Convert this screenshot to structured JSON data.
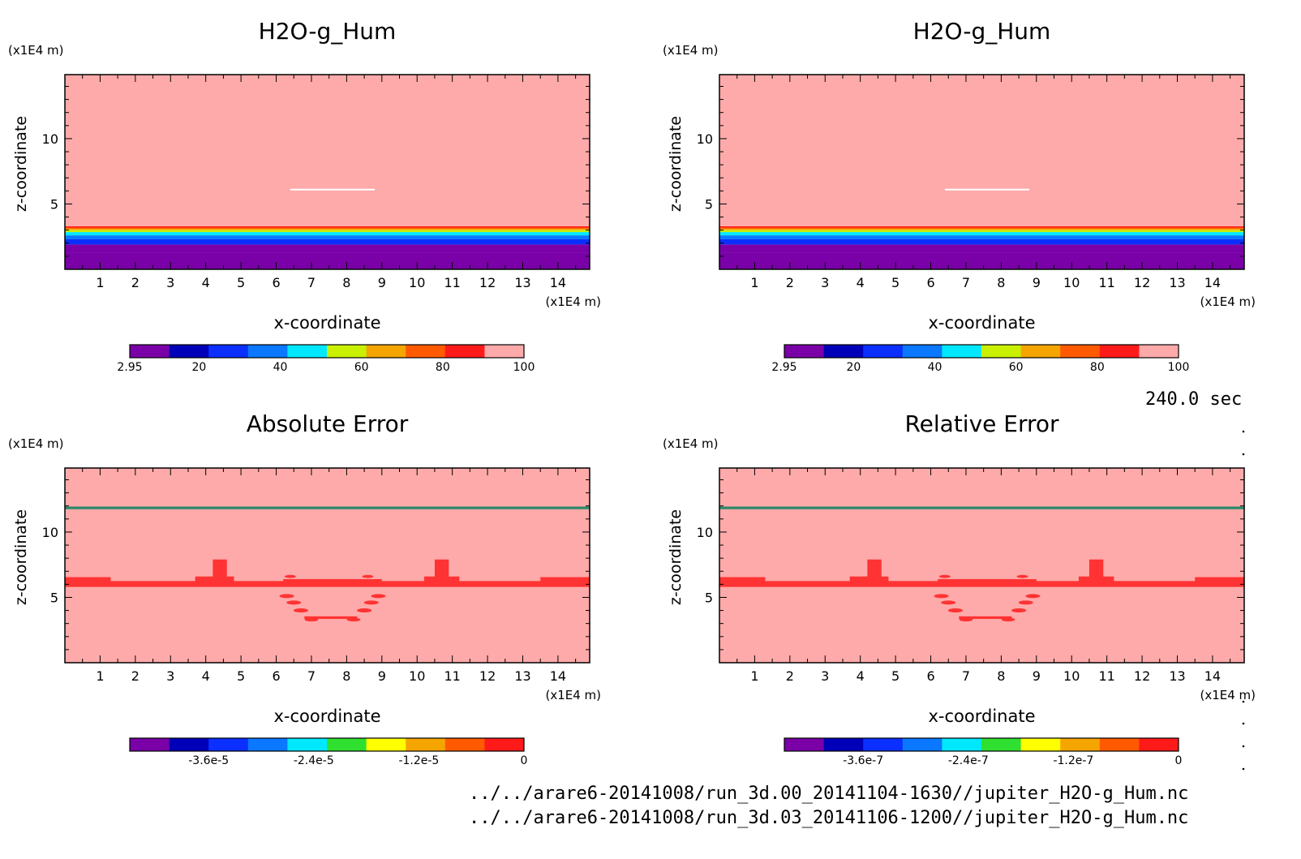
{
  "chart_data": [
    {
      "type": "heatmap",
      "panel": "top-left",
      "title": "H2O-g_Hum",
      "xlabel": "x-coordinate",
      "ylabel": "z-coordinate",
      "x_unit": "(x1E4 m)",
      "y_unit": "(x1E4 m)",
      "xlim": [
        0,
        14.9
      ],
      "ylim": [
        0,
        14.9
      ],
      "x_ticks": [
        1,
        2,
        3,
        4,
        5,
        6,
        7,
        8,
        9,
        10,
        11,
        12,
        13,
        14
      ],
      "y_ticks": [
        5,
        10
      ],
      "colorbar": {
        "colors": [
          "#7a00a8",
          "#0000b8",
          "#0a2fff",
          "#0a78ff",
          "#00e8ff",
          "#c8f000",
          "#f5a500",
          "#ff5a00",
          "#ff1a1a",
          "#ffaaaa"
        ],
        "labels": [
          "2.95",
          "20",
          "40",
          "60",
          "80",
          "100"
        ],
        "label_values": [
          2.95,
          20,
          40,
          60,
          80,
          100
        ],
        "range": [
          2.95,
          100
        ]
      },
      "layers": [
        {
          "z0": 0,
          "z1": 1.3,
          "value": 2.95
        },
        {
          "z0": 1.3,
          "z1": 1.9,
          "value": 12
        },
        {
          "z0": 1.9,
          "z1": 2.3,
          "value": 28
        },
        {
          "z0": 2.3,
          "z1": 2.6,
          "value": 38
        },
        {
          "z0": 2.6,
          "z1": 2.85,
          "value": 48
        },
        {
          "z0": 2.85,
          "z1": 3.0,
          "value": 58
        },
        {
          "z0": 3.0,
          "z1": 3.1,
          "value": 68
        },
        {
          "z0": 3.1,
          "z1": 3.2,
          "value": 78
        },
        {
          "z0": 3.2,
          "z1": 3.3,
          "value": 88
        },
        {
          "z0": 3.3,
          "z1": 14.9,
          "value": 100
        }
      ],
      "features": [
        {
          "kind": "hline",
          "x0": 6.4,
          "x1": 8.8,
          "z": 6.1,
          "color": "#ffffff"
        }
      ]
    },
    {
      "type": "heatmap",
      "panel": "top-right",
      "title": "H2O-g_Hum",
      "xlabel": "x-coordinate",
      "ylabel": "z-coordinate",
      "x_unit": "(x1E4 m)",
      "y_unit": "(x1E4 m)",
      "xlim": [
        0,
        14.9
      ],
      "ylim": [
        0,
        14.9
      ],
      "x_ticks": [
        1,
        2,
        3,
        4,
        5,
        6,
        7,
        8,
        9,
        10,
        11,
        12,
        13,
        14
      ],
      "y_ticks": [
        5,
        10
      ],
      "colorbar": {
        "colors": [
          "#7a00a8",
          "#0000b8",
          "#0a2fff",
          "#0a78ff",
          "#00e8ff",
          "#c8f000",
          "#f5a500",
          "#ff5a00",
          "#ff1a1a",
          "#ffaaaa"
        ],
        "labels": [
          "2.95",
          "20",
          "40",
          "60",
          "80",
          "100"
        ],
        "label_values": [
          2.95,
          20,
          40,
          60,
          80,
          100
        ],
        "range": [
          2.95,
          100
        ]
      },
      "layers": [
        {
          "z0": 0,
          "z1": 1.3,
          "value": 2.95
        },
        {
          "z0": 1.3,
          "z1": 1.9,
          "value": 12
        },
        {
          "z0": 1.9,
          "z1": 2.3,
          "value": 28
        },
        {
          "z0": 2.3,
          "z1": 2.6,
          "value": 38
        },
        {
          "z0": 2.6,
          "z1": 2.85,
          "value": 48
        },
        {
          "z0": 2.85,
          "z1": 3.0,
          "value": 58
        },
        {
          "z0": 3.0,
          "z1": 3.1,
          "value": 68
        },
        {
          "z0": 3.1,
          "z1": 3.2,
          "value": 78
        },
        {
          "z0": 3.2,
          "z1": 3.3,
          "value": 88
        },
        {
          "z0": 3.3,
          "z1": 14.9,
          "value": 100
        }
      ],
      "features": [
        {
          "kind": "hline",
          "x0": 6.4,
          "x1": 8.8,
          "z": 6.1,
          "color": "#ffffff"
        }
      ]
    },
    {
      "type": "heatmap",
      "panel": "bottom-left",
      "title": "Absolute Error",
      "xlabel": "x-coordinate",
      "ylabel": "z-coordinate",
      "x_unit": "(x1E4 m)",
      "y_unit": "(x1E4 m)",
      "xlim": [
        0,
        14.9
      ],
      "ylim": [
        0,
        14.9
      ],
      "x_ticks": [
        1,
        2,
        3,
        4,
        5,
        6,
        7,
        8,
        9,
        10,
        11,
        12,
        13,
        14
      ],
      "y_ticks": [
        5,
        10
      ],
      "colorbar": {
        "colors": [
          "#7a00a8",
          "#0000b8",
          "#0a2fff",
          "#0a78ff",
          "#00e8ff",
          "#30e030",
          "#ffff00",
          "#f5a500",
          "#ff5a00",
          "#ff1a1a"
        ],
        "labels": [
          "-3.6e-5",
          "-2.4e-5",
          "-1.2e-5",
          "0"
        ],
        "label_values": [
          -3.6e-05,
          -2.4e-05,
          -1.2e-05,
          0
        ],
        "range": [
          -4.5e-05,
          0
        ]
      },
      "background_color": "#ffaaaa",
      "features": [
        {
          "kind": "band",
          "z0": 11.75,
          "z1": 11.95,
          "color": "#2a8a6a"
        },
        {
          "kind": "band",
          "z0": 5.8,
          "z1": 6.25,
          "color": "#ff3333"
        },
        {
          "kind": "band",
          "x0": 6.2,
          "x1": 9.0,
          "z0": 6.15,
          "z1": 6.4,
          "color": "#ff3333"
        },
        {
          "kind": "band",
          "x0": 0.0,
          "x1": 1.3,
          "z0": 6.2,
          "z1": 6.55,
          "color": "#ff3333"
        },
        {
          "kind": "band",
          "x0": 13.5,
          "x1": 14.9,
          "z0": 6.2,
          "z1": 6.55,
          "color": "#ff3333"
        },
        {
          "kind": "band",
          "x0": 3.7,
          "x1": 4.8,
          "z0": 6.2,
          "z1": 6.6,
          "color": "#ff3333"
        },
        {
          "kind": "band",
          "x0": 4.2,
          "x1": 4.6,
          "z0": 6.5,
          "z1": 7.9,
          "color": "#ff3333"
        },
        {
          "kind": "band",
          "x0": 10.2,
          "x1": 11.2,
          "z0": 6.2,
          "z1": 6.6,
          "color": "#ff3333"
        },
        {
          "kind": "band",
          "x0": 10.5,
          "x1": 10.9,
          "z0": 6.5,
          "z1": 7.9,
          "color": "#ff3333"
        },
        {
          "kind": "band",
          "x0": 6.8,
          "x1": 8.3,
          "z0": 3.35,
          "z1": 3.55,
          "color": "#ff3333"
        },
        {
          "kind": "blob",
          "x": 6.3,
          "z": 5.1,
          "r": 0.13,
          "color": "#ff3333"
        },
        {
          "kind": "blob",
          "x": 6.5,
          "z": 4.6,
          "r": 0.13,
          "color": "#ff3333"
        },
        {
          "kind": "blob",
          "x": 6.7,
          "z": 4.0,
          "r": 0.13,
          "color": "#ff3333"
        },
        {
          "kind": "blob",
          "x": 7.0,
          "z": 3.3,
          "r": 0.12,
          "color": "#ff3333"
        },
        {
          "kind": "blob",
          "x": 8.2,
          "z": 3.3,
          "r": 0.12,
          "color": "#ff3333"
        },
        {
          "kind": "blob",
          "x": 8.5,
          "z": 4.0,
          "r": 0.13,
          "color": "#ff3333"
        },
        {
          "kind": "blob",
          "x": 8.7,
          "z": 4.6,
          "r": 0.13,
          "color": "#ff3333"
        },
        {
          "kind": "blob",
          "x": 8.9,
          "z": 5.1,
          "r": 0.13,
          "color": "#ff3333"
        },
        {
          "kind": "blob",
          "x": 6.4,
          "z": 6.6,
          "r": 0.1,
          "color": "#ff3333"
        },
        {
          "kind": "blob",
          "x": 8.6,
          "z": 6.6,
          "r": 0.1,
          "color": "#ff3333"
        }
      ]
    },
    {
      "type": "heatmap",
      "panel": "bottom-right",
      "title": "Relative Error",
      "xlabel": "x-coordinate",
      "ylabel": "z-coordinate",
      "x_unit": "(x1E4 m)",
      "y_unit": "(x1E4 m)",
      "xlim": [
        0,
        14.9
      ],
      "ylim": [
        0,
        14.9
      ],
      "x_ticks": [
        1,
        2,
        3,
        4,
        5,
        6,
        7,
        8,
        9,
        10,
        11,
        12,
        13,
        14
      ],
      "y_ticks": [
        5,
        10
      ],
      "colorbar": {
        "colors": [
          "#7a00a8",
          "#0000b8",
          "#0a2fff",
          "#0a78ff",
          "#00e8ff",
          "#30e030",
          "#ffff00",
          "#f5a500",
          "#ff5a00",
          "#ff1a1a"
        ],
        "labels": [
          "-3.6e-7",
          "-2.4e-7",
          "-1.2e-7",
          "0"
        ],
        "label_values": [
          -3.6e-07,
          -2.4e-07,
          -1.2e-07,
          0
        ],
        "range": [
          -4.5e-07,
          0
        ]
      },
      "background_color": "#ffaaaa",
      "features": [
        {
          "kind": "band",
          "z0": 11.75,
          "z1": 11.95,
          "color": "#2a8a6a"
        },
        {
          "kind": "band",
          "z0": 5.8,
          "z1": 6.25,
          "color": "#ff3333"
        },
        {
          "kind": "band",
          "x0": 6.2,
          "x1": 9.0,
          "z0": 6.15,
          "z1": 6.4,
          "color": "#ff3333"
        },
        {
          "kind": "band",
          "x0": 0.0,
          "x1": 1.3,
          "z0": 6.2,
          "z1": 6.55,
          "color": "#ff3333"
        },
        {
          "kind": "band",
          "x0": 13.5,
          "x1": 14.9,
          "z0": 6.2,
          "z1": 6.55,
          "color": "#ff3333"
        },
        {
          "kind": "band",
          "x0": 3.7,
          "x1": 4.8,
          "z0": 6.2,
          "z1": 6.6,
          "color": "#ff3333"
        },
        {
          "kind": "band",
          "x0": 4.2,
          "x1": 4.6,
          "z0": 6.5,
          "z1": 7.9,
          "color": "#ff3333"
        },
        {
          "kind": "band",
          "x0": 10.2,
          "x1": 11.2,
          "z0": 6.2,
          "z1": 6.6,
          "color": "#ff3333"
        },
        {
          "kind": "band",
          "x0": 10.5,
          "x1": 10.9,
          "z0": 6.5,
          "z1": 7.9,
          "color": "#ff3333"
        },
        {
          "kind": "band",
          "x0": 6.8,
          "x1": 8.3,
          "z0": 3.35,
          "z1": 3.55,
          "color": "#ff3333"
        },
        {
          "kind": "blob",
          "x": 6.3,
          "z": 5.1,
          "r": 0.13,
          "color": "#ff3333"
        },
        {
          "kind": "blob",
          "x": 6.5,
          "z": 4.6,
          "r": 0.13,
          "color": "#ff3333"
        },
        {
          "kind": "blob",
          "x": 6.7,
          "z": 4.0,
          "r": 0.13,
          "color": "#ff3333"
        },
        {
          "kind": "blob",
          "x": 7.0,
          "z": 3.3,
          "r": 0.12,
          "color": "#ff3333"
        },
        {
          "kind": "blob",
          "x": 8.2,
          "z": 3.3,
          "r": 0.12,
          "color": "#ff3333"
        },
        {
          "kind": "blob",
          "x": 8.5,
          "z": 4.0,
          "r": 0.13,
          "color": "#ff3333"
        },
        {
          "kind": "blob",
          "x": 8.7,
          "z": 4.6,
          "r": 0.13,
          "color": "#ff3333"
        },
        {
          "kind": "blob",
          "x": 8.9,
          "z": 5.1,
          "r": 0.13,
          "color": "#ff3333"
        },
        {
          "kind": "blob",
          "x": 6.4,
          "z": 6.6,
          "r": 0.1,
          "color": "#ff3333"
        },
        {
          "kind": "blob",
          "x": 8.6,
          "z": 6.6,
          "r": 0.1,
          "color": "#ff3333"
        }
      ]
    }
  ],
  "time_label": "240.0 sec",
  "files": [
    "../../arare6-20141008/run_3d.00_20141104-1630//jupiter_H2O-g_Hum.nc",
    "../../arare6-20141008/run_3d.03_20141106-1200//jupiter_H2O-g_Hum.nc"
  ]
}
